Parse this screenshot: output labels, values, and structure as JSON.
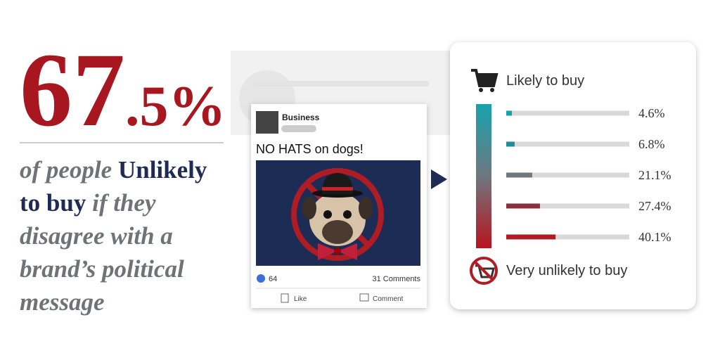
{
  "headline": {
    "big": "67",
    "small": ".5%",
    "lead": "of people",
    "emphasis": "Unlikely to buy",
    "rest": "if they disagree with a brand’s political message"
  },
  "post": {
    "author": "Business",
    "text": "NO HATS on dogs!",
    "likes": "64",
    "comments": "31 Comments",
    "like_button": "Like",
    "comment_button": "Comment"
  },
  "chart_data": {
    "type": "bar",
    "top_label": "Likely to buy",
    "bottom_label": "Very unlikely to buy",
    "values": [
      4.6,
      6.8,
      21.1,
      27.4,
      40.1
    ],
    "value_labels": [
      "4.6%",
      "6.8%",
      "21.1%",
      "27.4%",
      "40.1%"
    ],
    "colors": [
      "#1a9ea8",
      "#1f8d96",
      "#6f7780",
      "#8b2f3a",
      "#b01c24"
    ],
    "xlim": [
      0,
      100
    ]
  }
}
